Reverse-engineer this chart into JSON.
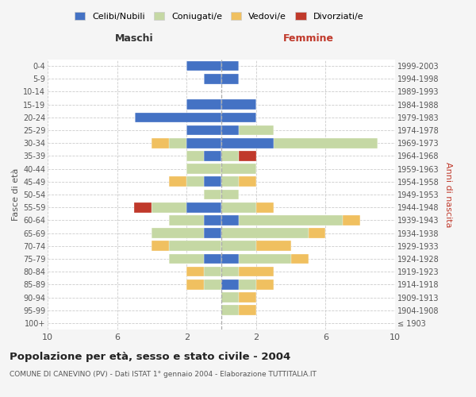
{
  "age_groups": [
    "100+",
    "95-99",
    "90-94",
    "85-89",
    "80-84",
    "75-79",
    "70-74",
    "65-69",
    "60-64",
    "55-59",
    "50-54",
    "45-49",
    "40-44",
    "35-39",
    "30-34",
    "25-29",
    "20-24",
    "15-19",
    "10-14",
    "5-9",
    "0-4"
  ],
  "birth_years": [
    "≤ 1903",
    "1904-1908",
    "1909-1913",
    "1914-1918",
    "1919-1923",
    "1924-1928",
    "1929-1933",
    "1934-1938",
    "1939-1943",
    "1944-1948",
    "1949-1953",
    "1954-1958",
    "1959-1963",
    "1964-1968",
    "1969-1973",
    "1974-1978",
    "1979-1983",
    "1984-1988",
    "1989-1993",
    "1994-1998",
    "1999-2003"
  ],
  "colors": {
    "celibi": "#4472c4",
    "coniugati": "#c5d8a4",
    "vedovi": "#f0c060",
    "divorziati": "#c0392b"
  },
  "maschi": {
    "celibi": [
      0,
      0,
      0,
      0,
      0,
      1,
      0,
      1,
      1,
      2,
      0,
      1,
      0,
      1,
      2,
      2,
      5,
      2,
      0,
      1,
      2
    ],
    "coniugati": [
      0,
      0,
      0,
      1,
      1,
      2,
      3,
      3,
      2,
      2,
      1,
      1,
      2,
      1,
      1,
      0,
      0,
      0,
      0,
      0,
      0
    ],
    "vedovi": [
      0,
      0,
      0,
      1,
      1,
      0,
      1,
      0,
      0,
      0,
      0,
      1,
      0,
      0,
      1,
      0,
      0,
      0,
      0,
      0,
      0
    ],
    "divorziati": [
      0,
      0,
      0,
      0,
      0,
      0,
      0,
      0,
      0,
      1,
      0,
      0,
      0,
      0,
      0,
      0,
      0,
      0,
      0,
      0,
      0
    ]
  },
  "femmine": {
    "celibi": [
      0,
      0,
      0,
      1,
      0,
      1,
      0,
      0,
      1,
      0,
      0,
      0,
      0,
      0,
      3,
      1,
      2,
      2,
      0,
      1,
      1
    ],
    "coniugati": [
      0,
      1,
      1,
      1,
      1,
      3,
      2,
      5,
      6,
      2,
      1,
      1,
      2,
      1,
      6,
      2,
      0,
      0,
      0,
      0,
      0
    ],
    "vedovi": [
      0,
      1,
      1,
      1,
      2,
      1,
      2,
      1,
      1,
      1,
      0,
      1,
      0,
      0,
      0,
      0,
      0,
      0,
      0,
      0,
      0
    ],
    "divorziati": [
      0,
      0,
      0,
      0,
      0,
      0,
      0,
      0,
      0,
      0,
      0,
      0,
      0,
      1,
      0,
      0,
      0,
      0,
      0,
      0,
      0
    ]
  },
  "xlim": 10,
  "title": "Popolazione per età, sesso e stato civile - 2004",
  "subtitle": "COMUNE DI CANEVINO (PV) - Dati ISTAT 1° gennaio 2004 - Elaborazione TUTTITALIA.IT",
  "xlabel_left": "Maschi",
  "xlabel_right": "Femmine",
  "ylabel_left": "Fasce di età",
  "ylabel_right": "Anni di nascita",
  "legend_labels": [
    "Celibi/Nubili",
    "Coniugati/e",
    "Vedovi/e",
    "Divorziati/e"
  ],
  "bg_color": "#f5f5f5",
  "plot_bg_color": "#ffffff"
}
